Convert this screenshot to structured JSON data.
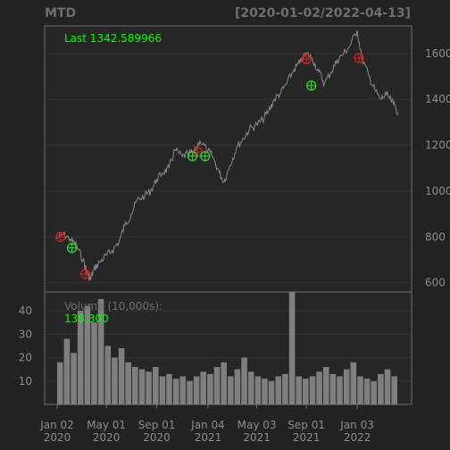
{
  "chart_data": {
    "type": "line",
    "title": "MTD",
    "date_range": "[2020-01-02/2022-04-13]",
    "price_panel": {
      "last_label": "Last 1342.589966",
      "ylim": [
        560,
        1720
      ],
      "y_ticks": [
        600,
        800,
        1000,
        1200,
        1400,
        1600
      ],
      "grid": true,
      "x": [
        "2020-01-02",
        "2020-01-17",
        "2020-02-03",
        "2020-02-19",
        "2020-03-05",
        "2020-03-16",
        "2020-03-23",
        "2020-04-01",
        "2020-04-15",
        "2020-05-01",
        "2020-05-15",
        "2020-06-01",
        "2020-06-15",
        "2020-07-01",
        "2020-07-15",
        "2020-08-03",
        "2020-08-17",
        "2020-09-01",
        "2020-09-15",
        "2020-10-01",
        "2020-10-15",
        "2020-11-02",
        "2020-11-16",
        "2020-12-01",
        "2020-12-15",
        "2021-01-04",
        "2021-01-15",
        "2021-02-01",
        "2021-02-12",
        "2021-02-26",
        "2021-03-15",
        "2021-04-01",
        "2021-04-15",
        "2021-05-03",
        "2021-05-17",
        "2021-06-01",
        "2021-06-15",
        "2021-07-01",
        "2021-07-15",
        "2021-08-02",
        "2021-08-16",
        "2021-09-01",
        "2021-09-15",
        "2021-10-01",
        "2021-10-15",
        "2021-11-01",
        "2021-11-15",
        "2021-12-01",
        "2021-12-15",
        "2022-01-03",
        "2022-01-14",
        "2022-02-01",
        "2022-02-15",
        "2022-03-01",
        "2022-03-15",
        "2022-04-01",
        "2022-04-13"
      ],
      "close": [
        795,
        812,
        790,
        760,
        700,
        640,
        615,
        660,
        690,
        720,
        740,
        780,
        850,
        900,
        960,
        980,
        1000,
        1050,
        1080,
        1100,
        1180,
        1150,
        1160,
        1170,
        1220,
        1175,
        1150,
        1080,
        1040,
        1110,
        1190,
        1230,
        1270,
        1290,
        1310,
        1350,
        1400,
        1430,
        1470,
        1530,
        1560,
        1600,
        1580,
        1520,
        1470,
        1520,
        1570,
        1600,
        1630,
        1700,
        1580,
        1500,
        1440,
        1400,
        1420,
        1380,
        1342.59
      ],
      "signals_sell": [
        {
          "x": "2020-01-10",
          "y": 800
        },
        {
          "x": "2020-03-11",
          "y": 638
        },
        {
          "x": "2020-12-10",
          "y": 1170
        },
        {
          "x": "2021-09-01",
          "y": 1575
        },
        {
          "x": "2022-01-07",
          "y": 1580
        }
      ],
      "signals_buy": [
        {
          "x": "2020-02-07",
          "y": 752
        },
        {
          "x": "2020-11-27",
          "y": 1152
        },
        {
          "x": "2020-12-28",
          "y": 1152
        },
        {
          "x": "2021-09-13",
          "y": 1460
        }
      ]
    },
    "volume_panel": {
      "label": "Volume (10,000s):",
      "last_value": "138,300",
      "ylim": [
        0,
        48
      ],
      "y_ticks": [
        10,
        20,
        30,
        40
      ],
      "approx_values": [
        18,
        28,
        22,
        40,
        42,
        35,
        45,
        25,
        20,
        24,
        18,
        16,
        15,
        14,
        16,
        12,
        13,
        11,
        12,
        10,
        12,
        14,
        13,
        16,
        18,
        12,
        15,
        20,
        14,
        12,
        11,
        10,
        12,
        13,
        48,
        12,
        11,
        12,
        14,
        16,
        13,
        12,
        15,
        18,
        12,
        11,
        10,
        13,
        15,
        12
      ]
    },
    "x_ticks": [
      {
        "date": "2020-01-02",
        "line1": "Jan 02",
        "line2": "2020"
      },
      {
        "date": "2020-05-01",
        "line1": "May 01",
        "line2": "2020"
      },
      {
        "date": "2020-09-01",
        "line1": "Sep 01",
        "line2": "2020"
      },
      {
        "date": "2021-01-04",
        "line1": "Jan 04",
        "line2": "2021"
      },
      {
        "date": "2021-05-03",
        "line1": "May 03",
        "line2": "2021"
      },
      {
        "date": "2021-09-01",
        "line1": "Sep 01",
        "line2": "2021"
      },
      {
        "date": "2022-01-03",
        "line1": "Jan 03",
        "line2": "2022"
      }
    ],
    "colors": {
      "background": "#222222",
      "panel": "#262626",
      "frame": "#6e6e6e",
      "grid": "#333333",
      "price_line": "#8a8a8a",
      "text": "#8c8c8c",
      "highlight": "#00ff00",
      "sell_marker": "#cc2222",
      "buy_marker": "#33cc33",
      "volume_bar": "#7f7f7f"
    }
  }
}
